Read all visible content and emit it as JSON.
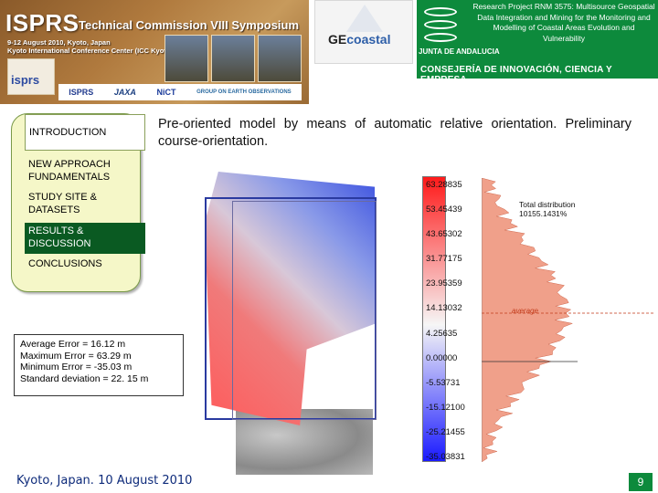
{
  "header": {
    "isprs_title": "ISPRS",
    "isprs_subtitle": "Technical Commission VIII Symposium",
    "isprs_date_line1": "9-12 August 2010, Kyoto, Japan",
    "isprs_date_line2": "Kyoto International Conference Center (ICC Kyoto)",
    "isprs_logo": "isprs",
    "sponsors": [
      "ISPRS",
      "JAXA",
      "NiCT",
      "GROUP ON EARTH OBSERVATIONS"
    ],
    "geco_prefix": "GE",
    "geco_suffix": "coastal",
    "research_project": "Research Project RNM 3575: Multisource Geospatial Data Integration and Mining for the Monitoring and Modelling of Coastal Areas Evolution and Vulnerability",
    "junta_name": "JUNTA DE ANDALUCIA",
    "consejeria": "CONSEJERÍA DE INNOVACIÓN, CIENCIA Y EMPRESA"
  },
  "nav": {
    "items": [
      {
        "label": "INTRODUCTION"
      },
      {
        "label": "NEW APPROACH FUNDAMENTALS"
      },
      {
        "label": "STUDY SITE & DATASETS"
      },
      {
        "label": "RESULTS & DISCUSSION"
      },
      {
        "label": "CONCLUSIONS"
      }
    ]
  },
  "heading": "Pre-oriented model by means of automatic relative orientation. Preliminary course-orientation.",
  "errors": {
    "average": "Average Error = 16.12 m",
    "maximum": "Maximum Error = 63.29 m",
    "minimum": "Minimum Error = -35.03 m",
    "std": "Standard deviation = 22. 15 m"
  },
  "colorbar": {
    "labels": [
      "63.28835",
      "53.45439",
      "43.65302",
      "31.77175",
      "23.95359",
      "14.13032",
      "4.25635",
      "0.00000",
      "-5.53731",
      "-15.12100",
      "-25.21455",
      "-35.03831"
    ]
  },
  "histogram": {
    "title_line1": "Total distribution",
    "title_line2": "10155.1431%",
    "average_label": "average"
  },
  "footer": {
    "date": "Kyoto, Japan. 10 August 2010",
    "page": "9"
  },
  "colors": {
    "junta_green": "#0d8a3c",
    "nav_selected": "#0a5a22",
    "nav_bg": "#f5f7c8"
  }
}
